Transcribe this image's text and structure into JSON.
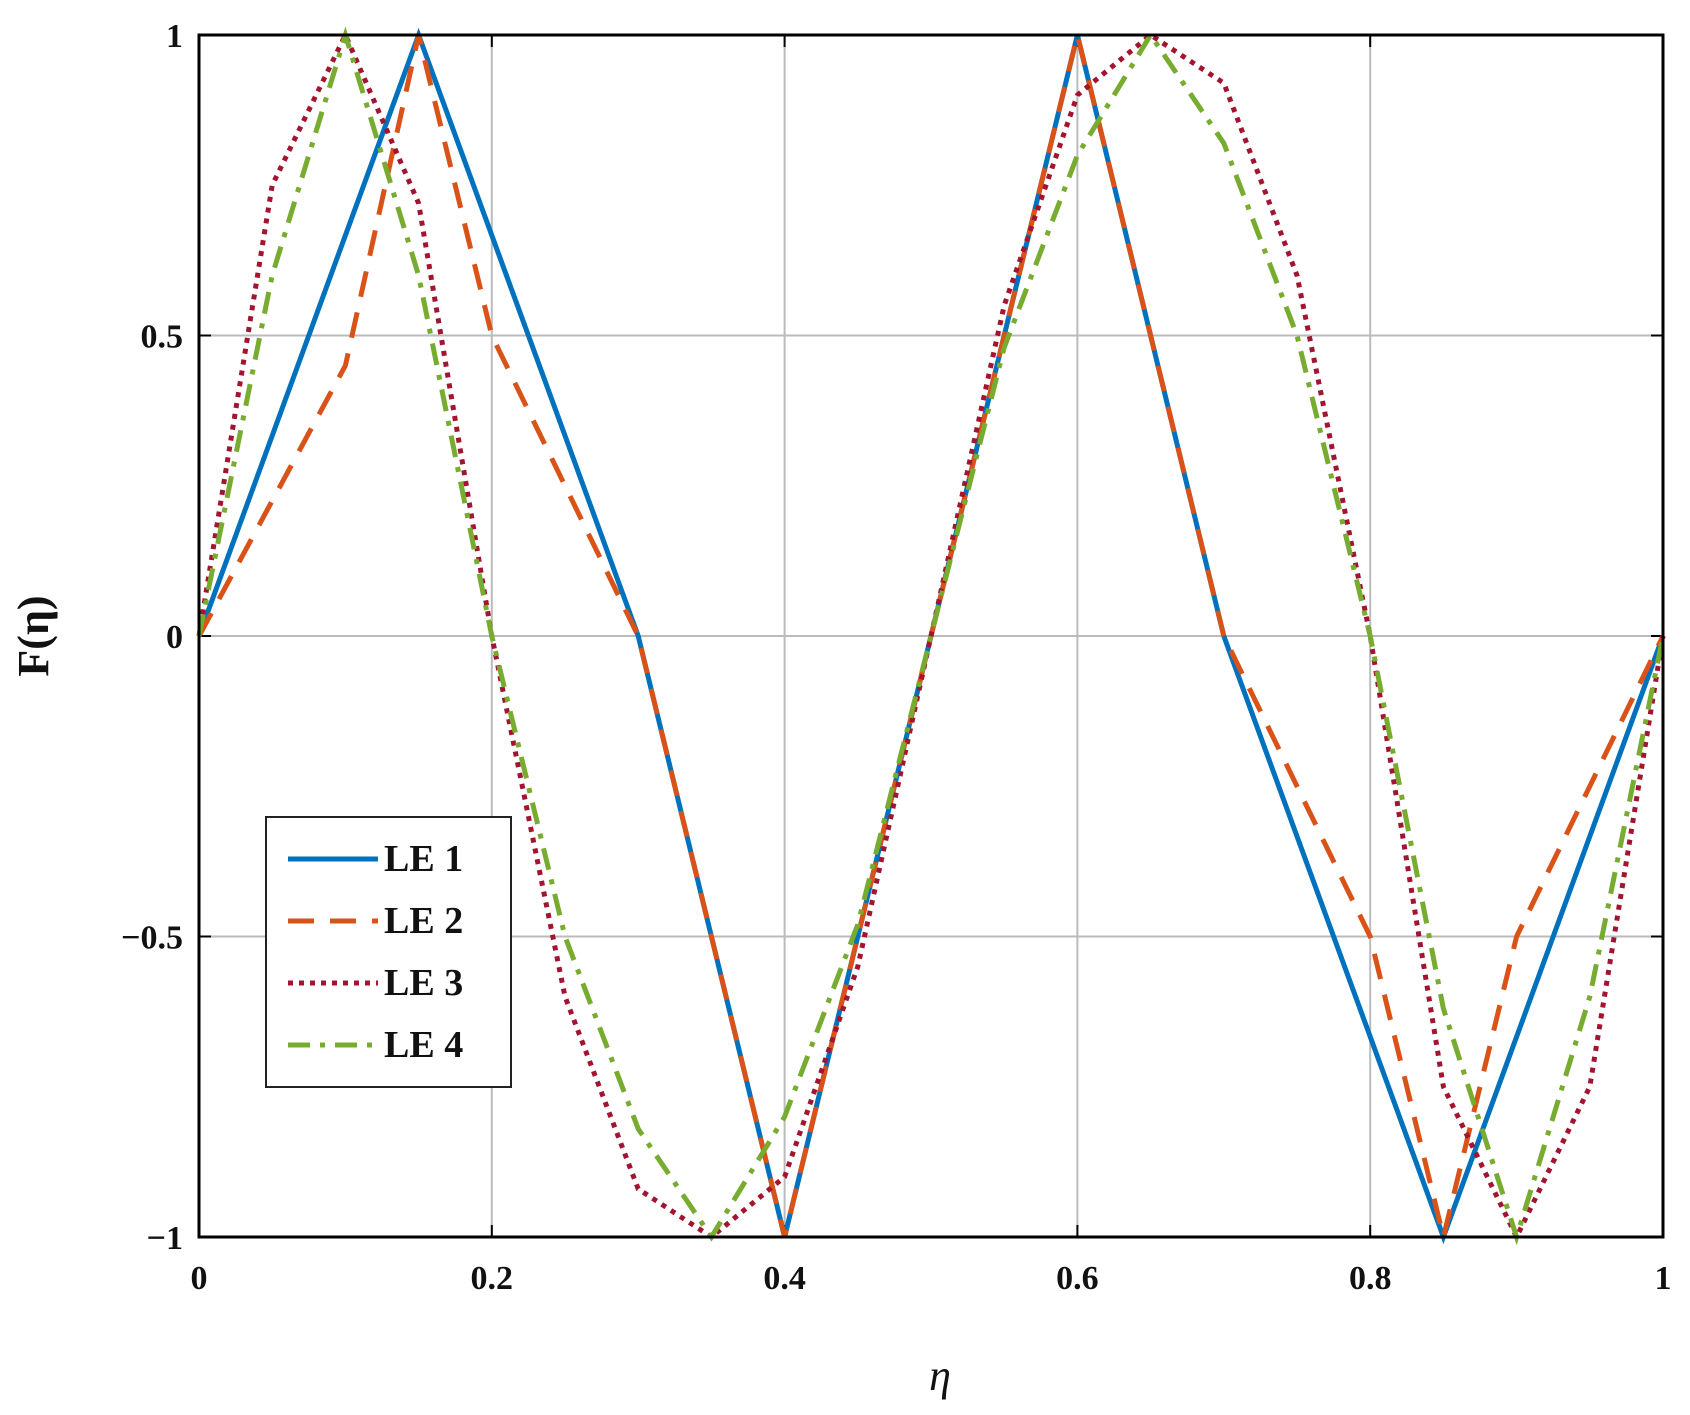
{
  "chart_data": {
    "type": "line",
    "xlabel": "η",
    "ylabel": "F(η)",
    "xlim": [
      0,
      1
    ],
    "ylim": [
      -1,
      1
    ],
    "xticks": [
      0,
      0.2,
      0.4,
      0.6,
      0.8,
      1
    ],
    "yticks": [
      {
        "value": -1,
        "label": "−1"
      },
      {
        "value": -0.5,
        "label": "−0.5"
      },
      0,
      0.5,
      1
    ],
    "grid": true,
    "legend_loc": "lower left",
    "series": [
      {
        "name": "LE 1",
        "color": "#0072bd",
        "linestyle": "solid",
        "x": [
          0,
          0.15,
          0.3,
          0.4,
          0.5,
          0.6,
          0.7,
          0.85,
          1
        ],
        "values": [
          0,
          1,
          0,
          -1,
          0,
          1,
          0,
          -1,
          0
        ]
      },
      {
        "name": "LE 2",
        "color": "#d95319",
        "linestyle": "dashed",
        "x": [
          0,
          0.1,
          0.15,
          0.2,
          0.3,
          0.35,
          0.4,
          0.45,
          0.5,
          0.55,
          0.6,
          0.65,
          0.7,
          0.8,
          0.85,
          0.9,
          1
        ],
        "values": [
          0,
          0.45,
          1,
          0.5,
          0,
          -0.5,
          -1,
          -0.5,
          0,
          0.5,
          1,
          0.5,
          0,
          -0.5,
          -1,
          -0.5,
          0
        ]
      },
      {
        "name": "LE 3",
        "color": "#a2142f",
        "linestyle": "dotted",
        "x": [
          0,
          0.05,
          0.1,
          0.15,
          0.2,
          0.25,
          0.3,
          0.35,
          0.4,
          0.45,
          0.5,
          0.55,
          0.6,
          0.65,
          0.7,
          0.75,
          0.8,
          0.85,
          0.9,
          0.95,
          1
        ],
        "values": [
          0,
          0.75,
          1,
          0.72,
          0,
          -0.6,
          -0.92,
          -1,
          -0.9,
          -0.55,
          0,
          0.55,
          0.9,
          1,
          0.92,
          0.6,
          0,
          -0.75,
          -1,
          -0.75,
          0
        ]
      },
      {
        "name": "LE 4",
        "color": "#77ac30",
        "linestyle": "dashdot",
        "x": [
          0,
          0.05,
          0.1,
          0.15,
          0.2,
          0.25,
          0.3,
          0.35,
          0.4,
          0.45,
          0.5,
          0.55,
          0.6,
          0.65,
          0.7,
          0.75,
          0.8,
          0.85,
          0.9,
          0.95,
          1
        ],
        "values": [
          0,
          0.6,
          1,
          0.6,
          0,
          -0.5,
          -0.82,
          -1,
          -0.8,
          -0.48,
          0,
          0.48,
          0.8,
          1,
          0.82,
          0.5,
          0,
          -0.62,
          -1,
          -0.6,
          0
        ]
      }
    ]
  }
}
